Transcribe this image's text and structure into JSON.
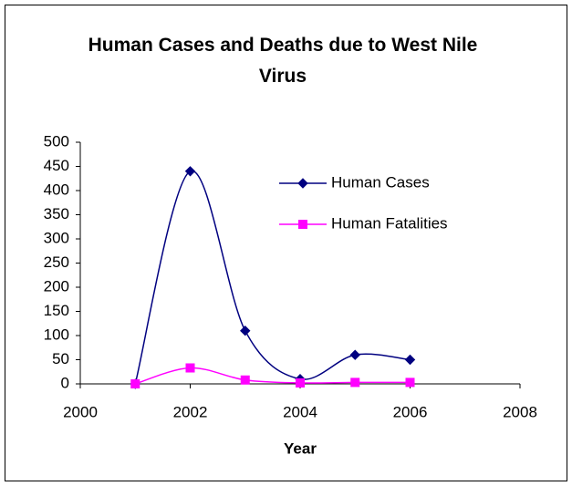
{
  "chart_data": {
    "type": "line",
    "title": "Human Cases and Deaths due to West Nile Virus",
    "x_label": "Year",
    "x": [
      2001,
      2002,
      2003,
      2004,
      2005,
      2006
    ],
    "series": [
      {
        "name": "Human Cases",
        "color": "#000080",
        "marker": "diamond",
        "values": [
          0,
          440,
          110,
          10,
          60,
          50
        ]
      },
      {
        "name": "Human Fatalities",
        "color": "#ff00ff",
        "marker": "square",
        "values": [
          0,
          33,
          8,
          2,
          3,
          3
        ]
      }
    ],
    "xlim": [
      2000,
      2008
    ],
    "xticks": [
      2000,
      2002,
      2004,
      2006,
      2008
    ],
    "ylim": [
      0,
      500
    ],
    "yticks": [
      0,
      50,
      100,
      150,
      200,
      250,
      300,
      350,
      400,
      450,
      500
    ],
    "smooth": true,
    "grid": false,
    "legend": "top-right"
  }
}
